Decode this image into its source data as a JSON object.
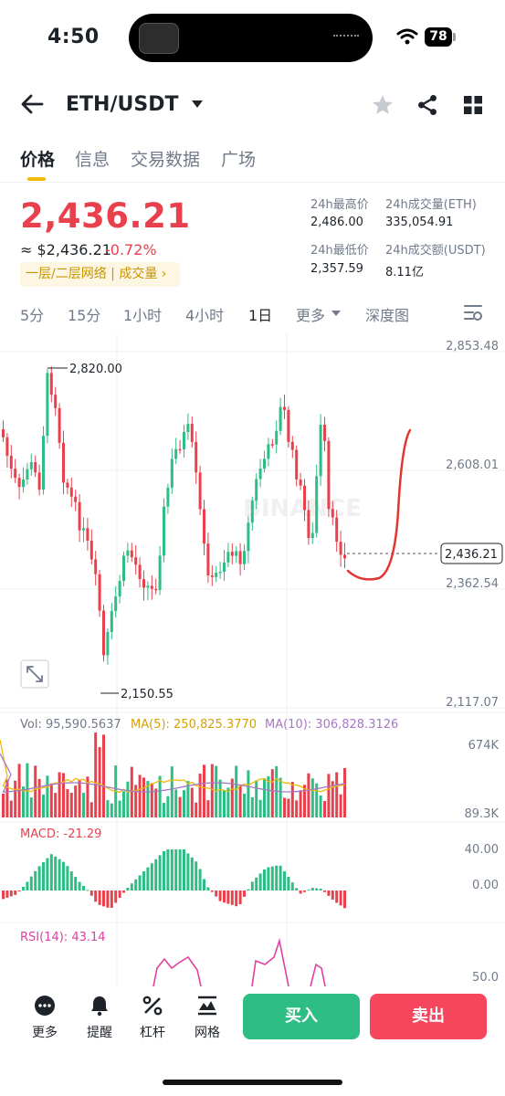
{
  "status_bar": {
    "time": "4:50",
    "battery": "78"
  },
  "header": {
    "pair": "ETH/USDT"
  },
  "tabs": [
    "价格",
    "信息",
    "交易数据",
    "广场"
  ],
  "price": {
    "last": "2,436.21",
    "usd": "≈ $2,436.21",
    "change": "-0.72%",
    "badge": "一层/二层网络 | 成交量 ›"
  },
  "stats": {
    "high_label": "24h最高价",
    "high": "2,486.00",
    "vol_eth_label": "24h成交量(ETH)",
    "vol_eth": "335,054.91",
    "low_label": "24h最低价",
    "low": "2,357.59",
    "vol_usdt_label": "24h成交额(USDT)",
    "vol_usdt": "8.11亿"
  },
  "intervals": [
    "5分",
    "15分",
    "1小时",
    "4小时",
    "1日",
    "更多",
    "深度图"
  ],
  "chart_axis": {
    "p_top": "2,853.48",
    "p_mid": "2,608.01",
    "p_low": "2,362.54",
    "p_bottom": "2,117.07",
    "last_tag": "2,436.21",
    "high_mark": "2,820.00",
    "low_mark": "2,150.55",
    "vol_top": "674K",
    "vol_bottom": "89.3K",
    "macd_top": "40.00",
    "macd_zero": "0.00",
    "rsi_mid": "50.0"
  },
  "indicators": {
    "vol": "Vol: 95,590.5637",
    "ma5": "MA(5): 250,825.3770",
    "ma10": "MA(10): 306,828.3126",
    "macd": "MACD: -21.29",
    "rsi": "RSI(14): 43.14"
  },
  "watermark": "BINANCE",
  "colors": {
    "up": "#2ebd85",
    "down": "#e8414d",
    "accent": "#f0b90b",
    "ma5": "#f0b90b",
    "ma10": "#a678c4",
    "rsi": "#e040a0"
  },
  "bottom": {
    "more": "更多",
    "alert": "提醒",
    "leverage": "杠杆",
    "grid": "网格",
    "buy": "买入",
    "sell": "卖出"
  }
}
